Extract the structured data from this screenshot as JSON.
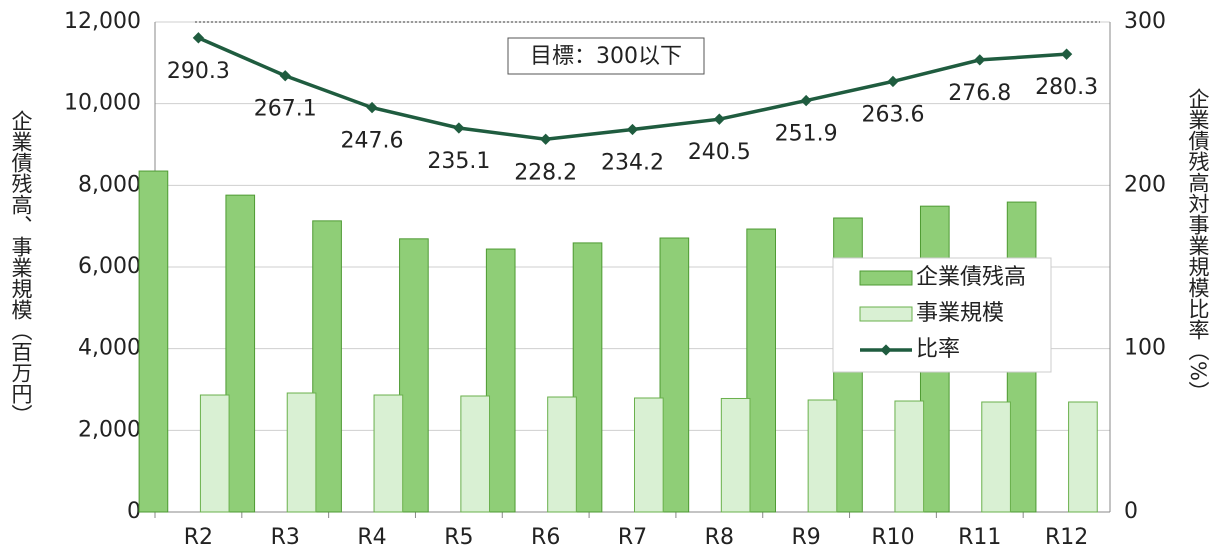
{
  "chart_data": {
    "type": "bar",
    "categories": [
      "R2",
      "R3",
      "R4",
      "R5",
      "R6",
      "R7",
      "R8",
      "R9",
      "R10",
      "R11",
      "R12"
    ],
    "series": [
      {
        "name": "企業債残高",
        "color": "#8fce77",
        "values": [
          8350,
          7760,
          7130,
          6690,
          6440,
          6590,
          6710,
          6930,
          7200,
          7490,
          7590
        ]
      },
      {
        "name": "事業規模",
        "color": "#d9f0d3",
        "values": [
          2865,
          2914,
          2865,
          2841,
          2816,
          2792,
          2780,
          2743,
          2718,
          2694,
          2694
        ]
      },
      {
        "name": "比率",
        "type": "line",
        "axis": "y2",
        "color": "#1f5c3f",
        "values": [
          290.3,
          267.1,
          247.6,
          235.1,
          228.2,
          234.2,
          240.5,
          251.9,
          263.6,
          276.8,
          280.3
        ]
      }
    ],
    "ylim": [
      0,
      12000
    ],
    "yticks": [
      {
        "value": 0,
        "label": "0"
      },
      {
        "value": 2000,
        "label": "2,000"
      },
      {
        "value": 4000,
        "label": "4,000"
      },
      {
        "value": 6000,
        "label": "6,000"
      },
      {
        "value": 8000,
        "label": "8,000"
      },
      {
        "value": 10000,
        "label": "10,000"
      },
      {
        "value": 12000,
        "label": "12,000"
      }
    ],
    "y2lim": [
      0,
      300
    ],
    "y2ticks": [
      0,
      100,
      200,
      300
    ],
    "ylabel": "企業債残高、事業規模（百万円）",
    "y2label": "企業債残高対事業規模比率（%）",
    "target": 300,
    "annotation": "目標：300以下",
    "grid": true,
    "legend": "right"
  }
}
